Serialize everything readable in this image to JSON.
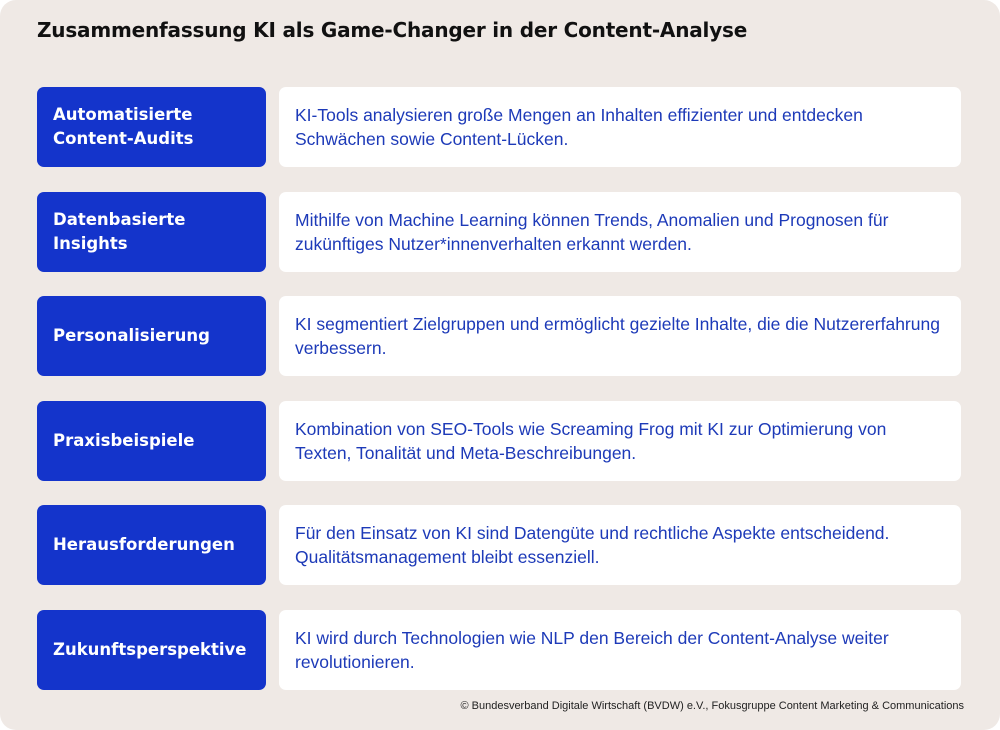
{
  "title": "Zusammenfassung KI als Game-Changer in der Content-Analyse",
  "rows": [
    {
      "label": "Automatisierte Content-Audits",
      "text": "KI-Tools analysieren große Mengen an Inhalten effizienter und entdecken Schwächen sowie Content-Lücken."
    },
    {
      "label": "Datenbasierte Insights",
      "text": "Mithilfe von Machine Learning können Trends, Anomalien und Prognosen für zukünftiges Nutzer*innenverhalten erkannt werden."
    },
    {
      "label": "Personalisierung",
      "text": "KI segmentiert Zielgruppen und ermöglicht gezielte Inhalte, die die Nutzererfahrung verbessern."
    },
    {
      "label": "Praxisbeispiele",
      "text": "Kombination von SEO-Tools wie Screaming Frog mit KI zur Optimierung von Texten, Tonalität und Meta-Beschreibungen."
    },
    {
      "label": "Herausforderungen",
      "text": "Für den Einsatz von KI sind Datengüte und rechtliche Aspekte entscheidend. Qualitätsmanagement bleibt essenziell."
    },
    {
      "label": "Zukunftsperspektive",
      "text": "KI wird durch Technologien wie NLP den Bereich der Content-Analyse weiter revolutionieren."
    }
  ],
  "footer": "© Bundesverband Digitale Wirtschaft (BVDW) e.V., Fokusgruppe Content Marketing & Communications",
  "colors": {
    "background": "#efe9e5",
    "label_fill": "#1434cb",
    "label_text": "#ffffff",
    "desc_fill": "#ffffff",
    "desc_text": "#1d3ab8",
    "title_text": "#111111"
  }
}
